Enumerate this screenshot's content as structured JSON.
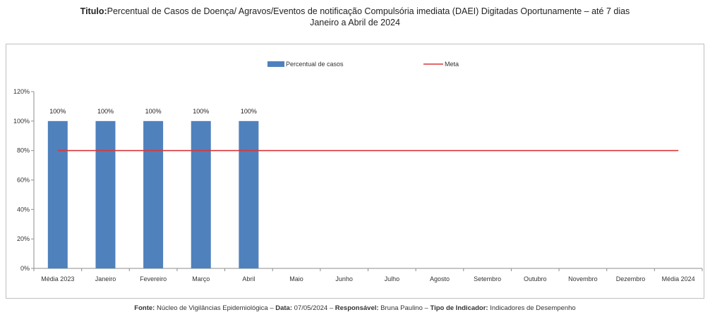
{
  "header": {
    "title_prefix": "Titulo:",
    "title_line1": "Percentual de Casos de Doença/ Agravos/Eventos de notificação Compulsória imediata (DAEI) Digitadas Oportunamente – até 7 dias",
    "title_line2": "Janeiro a Abril  de 2024"
  },
  "footer": {
    "fonte_label": "Fonte:",
    "fonte_value": " Núcleo de Vigilâncias Epidemiológica – ",
    "data_label": "Data:",
    "data_value": " 07/05/2024 – ",
    "responsavel_label": "Responsável:",
    "responsavel_value": " Bruna Paulino – ",
    "tipo_label": "Tipo de Indicador:",
    "tipo_value": " Indicadores de Desempenho"
  },
  "chart_data": {
    "type": "bar",
    "title": "Percentual de Casos de Doença/ Agravos/Eventos de notificação Compulsória imediata (DAEI) Digitadas Oportunamente – até 7 dias",
    "subtitle": "Janeiro a Abril  de 2024",
    "xlabel": "",
    "ylabel": "",
    "categories": [
      "Média 2023",
      "Janeiro",
      "Fevereiro",
      "Março",
      "Abril",
      "Maio",
      "Junho",
      "Julho",
      "Agosto",
      "Setembro",
      "Outubro",
      "Novembro",
      "Dezembro",
      "Média 2024"
    ],
    "series": [
      {
        "name": "Percentual de casos",
        "kind": "bar",
        "color": "#4f81bd",
        "values": [
          100,
          100,
          100,
          100,
          100,
          null,
          null,
          null,
          null,
          null,
          null,
          null,
          null,
          null
        ],
        "labels": [
          "100%",
          "100%",
          "100%",
          "100%",
          "100%",
          "",
          "",
          "",
          "",
          "",
          "",
          "",
          "",
          ""
        ]
      },
      {
        "name": "Meta",
        "kind": "line",
        "color": "#d9373a",
        "values": [
          80,
          80,
          80,
          80,
          80,
          80,
          80,
          80,
          80,
          80,
          80,
          80,
          80,
          80
        ]
      }
    ],
    "ylim": [
      0,
      120
    ],
    "yticks": [
      0,
      20,
      40,
      60,
      80,
      100,
      120
    ],
    "ytick_labels": [
      "0%",
      "20%",
      "40%",
      "60%",
      "80%",
      "100%",
      "120%"
    ],
    "grid": false,
    "legend_position": "top-center"
  }
}
